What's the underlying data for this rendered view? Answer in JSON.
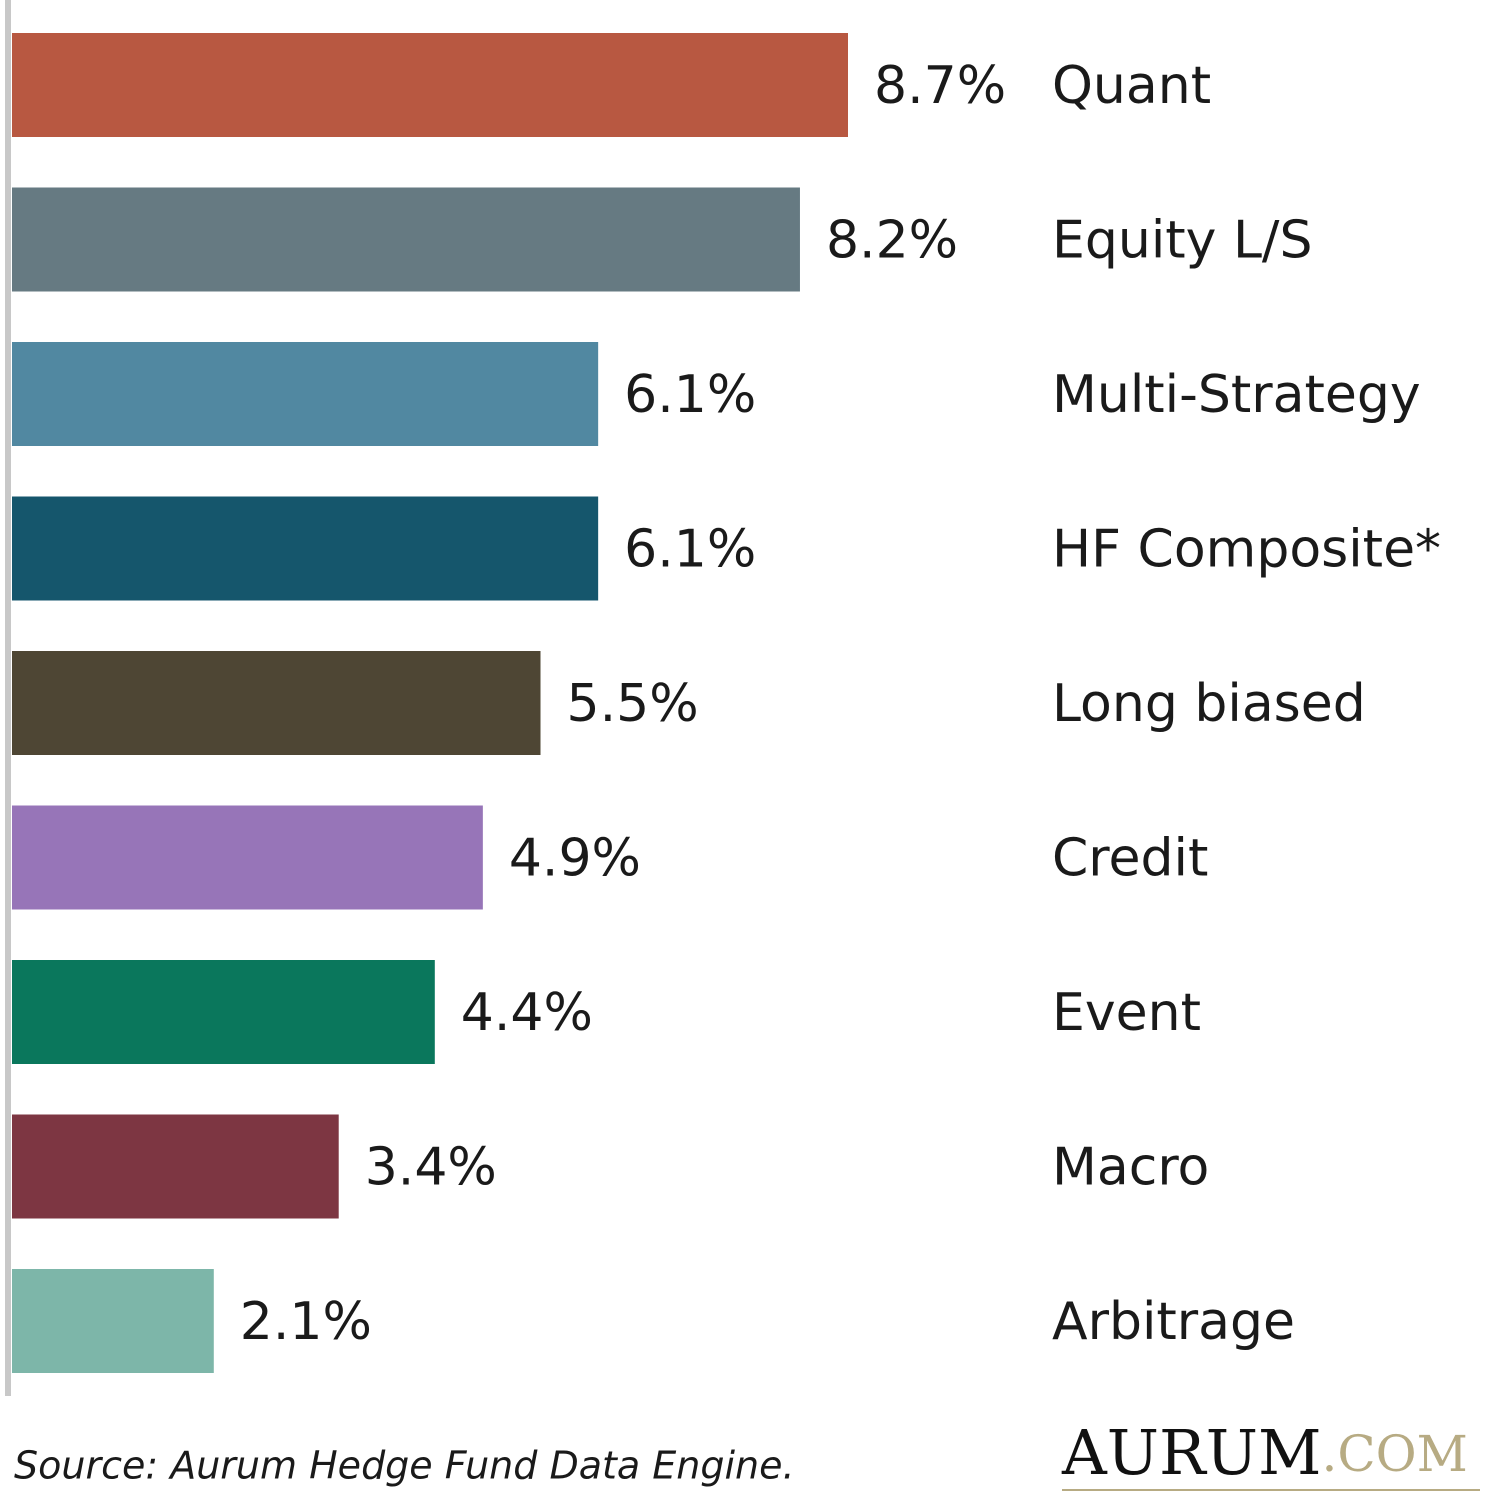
{
  "chart_data": {
    "type": "hbar",
    "categories": [
      "Quant",
      "Equity L/S",
      "Multi-Strategy",
      "HF Composite*",
      "Long biased",
      "Credit",
      "Event",
      "Macro",
      "Arbitrage"
    ],
    "values": [
      8.7,
      8.2,
      6.1,
      6.1,
      5.5,
      4.9,
      4.4,
      3.4,
      2.1
    ],
    "value_labels": [
      "8.7%",
      "8.2%",
      "6.1%",
      "6.1%",
      "5.5%",
      "4.9%",
      "4.4%",
      "3.4%",
      "2.1%"
    ],
    "colors": [
      "#b85841",
      "#667a82",
      "#5188a1",
      "#15566c",
      "#4e4634",
      "#9775b8",
      "#0a775c",
      "#7d3642",
      "#7db6a9"
    ],
    "source": "Source: Aurum Hedge Fund Data Engine.",
    "logo": {
      "name": "AURUM",
      "domain": ".COM"
    }
  }
}
